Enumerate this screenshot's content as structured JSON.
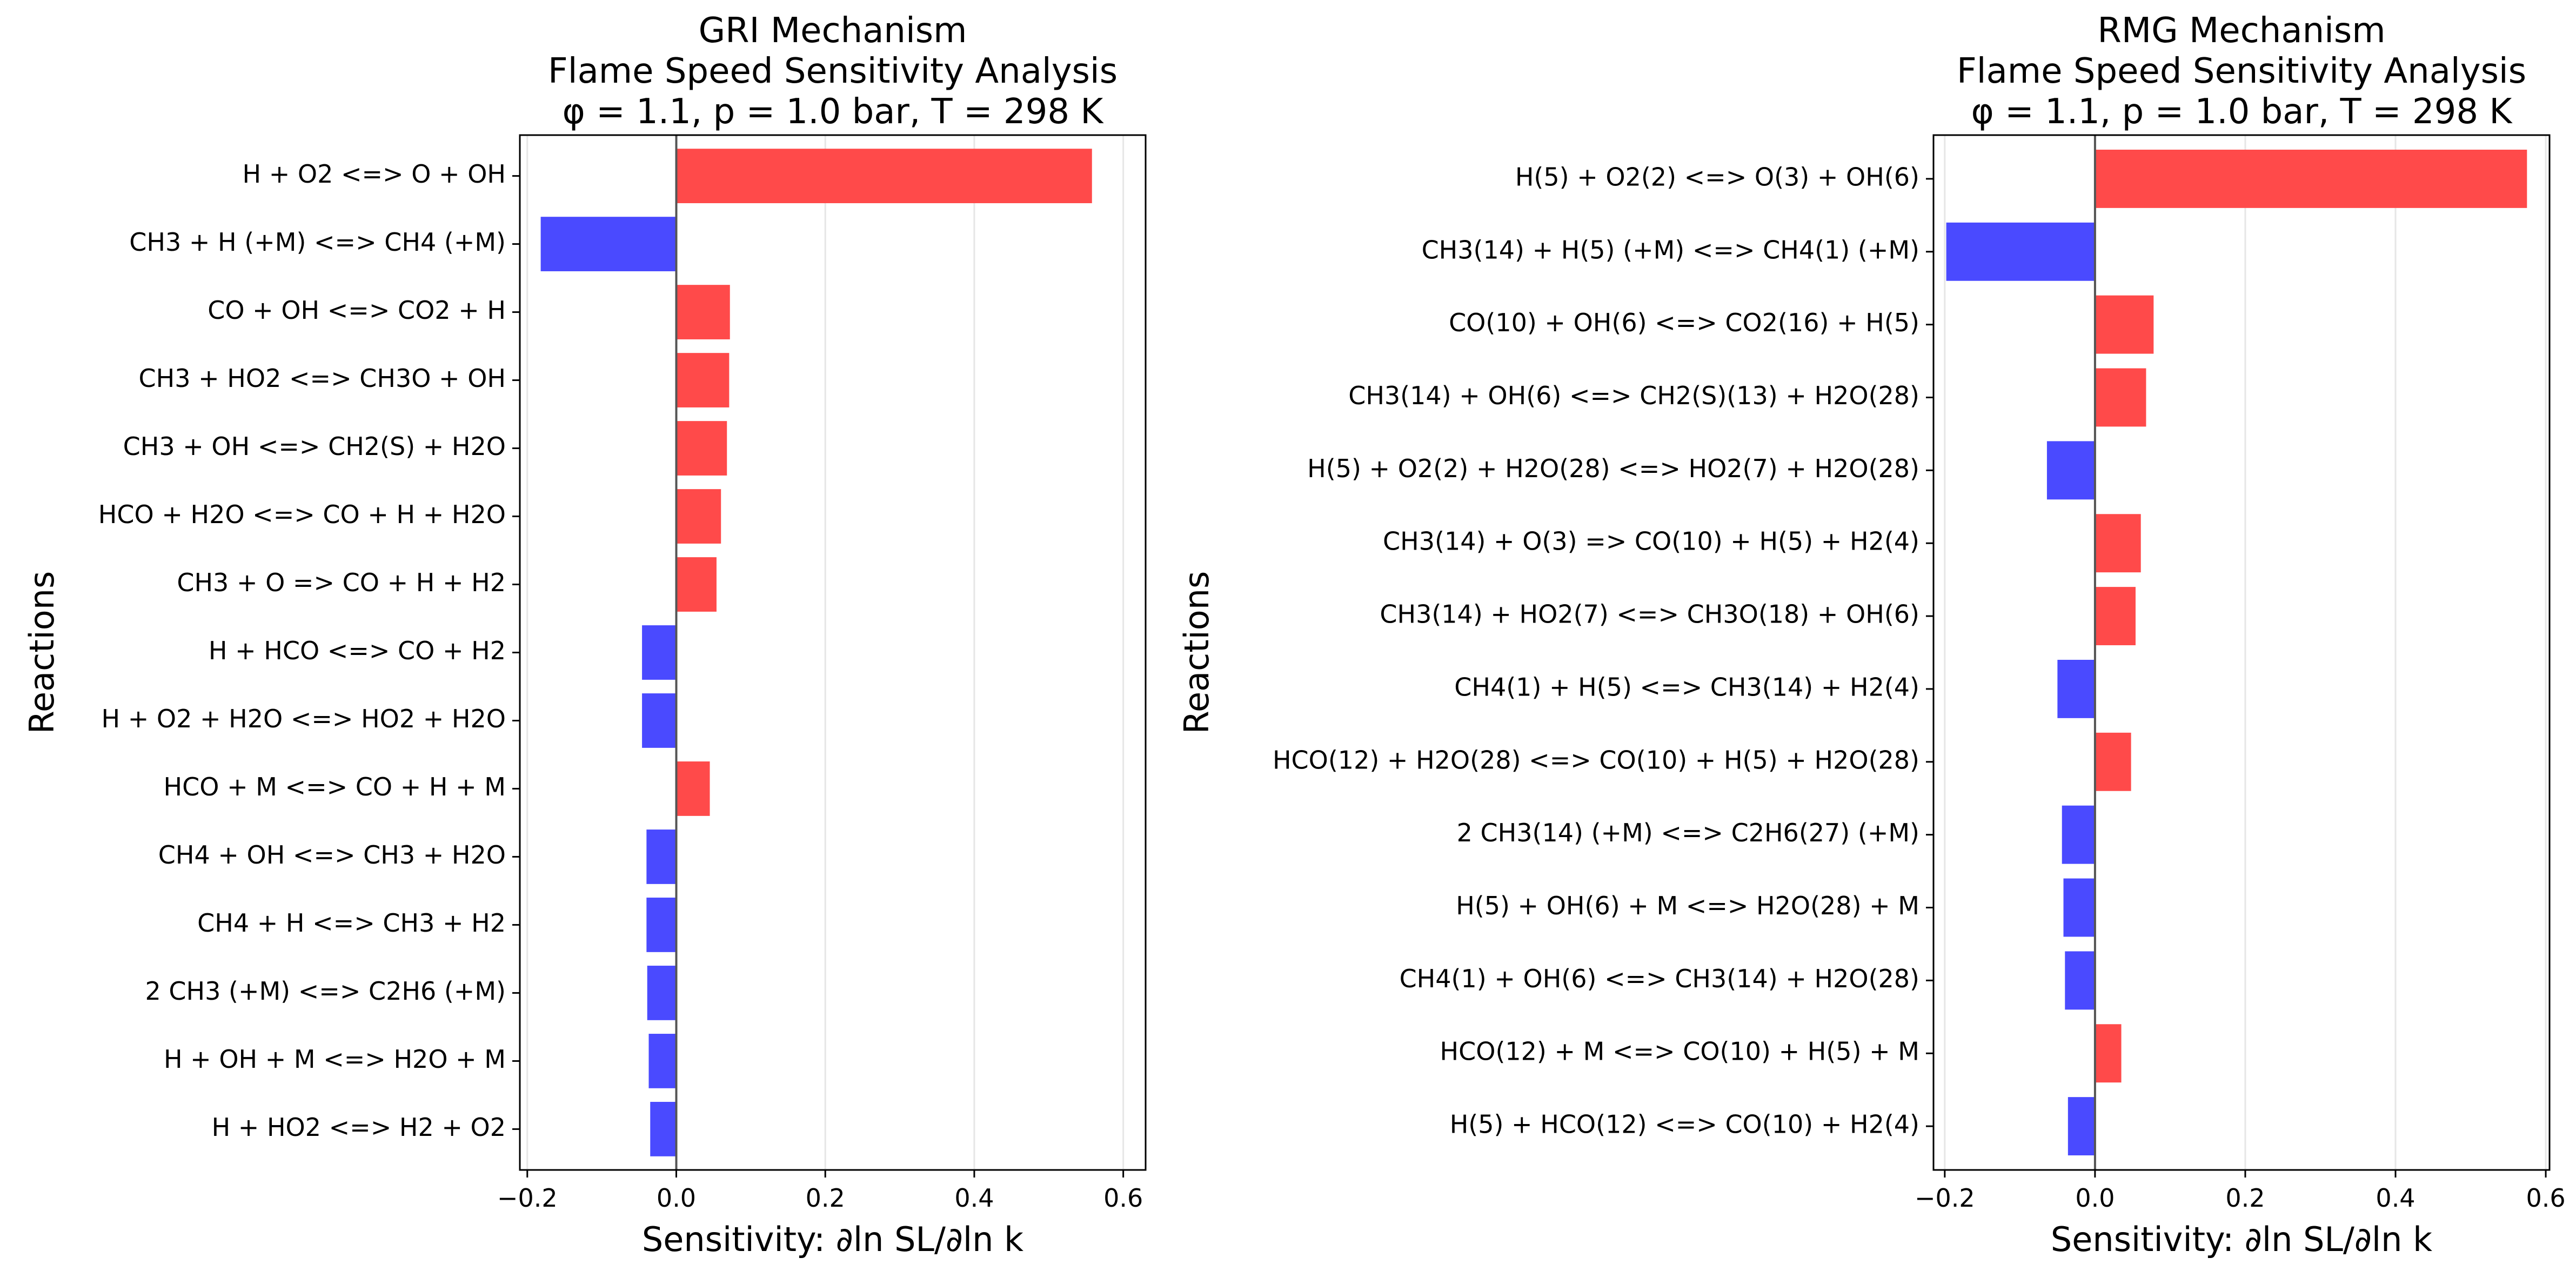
{
  "chart_data": [
    {
      "type": "bar",
      "orientation": "horizontal",
      "title_lines": [
        "GRI Mechanism",
        "Flame Speed Sensitivity Analysis",
        "φ = 1.1, p = 1.0 bar, T = 298 K"
      ],
      "xlabel": "Sensitivity: ∂ln SL/∂ln k",
      "ylabel": "Reactions",
      "xlim": [
        -0.21,
        0.63
      ],
      "xticks": [
        -0.2,
        0.0,
        0.2,
        0.4,
        0.6
      ],
      "xtick_labels": [
        "−0.2",
        "0.0",
        "0.2",
        "0.4",
        "0.6"
      ],
      "grid": "vertical",
      "positive_color": "#ff4a4a",
      "negative_color": "#4a4aff",
      "categories": [
        "H + O2 <=> O + OH",
        "CH3 + H (+M) <=> CH4 (+M)",
        "CO + OH <=> CO2 + H",
        "CH3 + HO2 <=> CH3O + OH",
        "CH3 + OH <=> CH2(S) + H2O",
        "HCO + H2O <=> CO + H + H2O",
        "CH3 + O => CO + H + H2",
        "H + HCO <=> CO + H2",
        "H + O2 + H2O <=> HO2 + H2O",
        "HCO + M <=> CO + H + M",
        "CH4 + OH <=> CH3 + H2O",
        "CH4 + H <=> CH3 + H2",
        "2 CH3 (+M) <=> C2H6 (+M)",
        "H + OH + M <=> H2O + M",
        "H + HO2 <=> H2 + O2"
      ],
      "values": [
        0.558,
        -0.182,
        0.072,
        0.071,
        0.068,
        0.06,
        0.054,
        -0.046,
        -0.046,
        0.045,
        -0.04,
        -0.04,
        -0.039,
        -0.037,
        -0.035
      ]
    },
    {
      "type": "bar",
      "orientation": "horizontal",
      "title_lines": [
        "RMG Mechanism",
        "Flame Speed Sensitivity Analysis",
        "φ = 1.1, p = 1.0 bar, T = 298 K"
      ],
      "xlabel": "Sensitivity: ∂ln SL/∂ln k",
      "ylabel": "Reactions",
      "xlim": [
        -0.215,
        0.605
      ],
      "xticks": [
        -0.2,
        0.0,
        0.2,
        0.4,
        0.6
      ],
      "xtick_labels": [
        "−0.2",
        "0.0",
        "0.2",
        "0.4",
        "0.6"
      ],
      "grid": "vertical",
      "positive_color": "#ff4a4a",
      "negative_color": "#4a4aff",
      "categories": [
        "H(5) + O2(2) <=> O(3) + OH(6)",
        "CH3(14) + H(5) (+M) <=> CH4(1) (+M)",
        "CO(10) + OH(6) <=> CO2(16) + H(5)",
        "CH3(14) + OH(6) <=> CH2(S)(13) + H2O(28)",
        "H(5) + O2(2) + H2O(28) <=> HO2(7) + H2O(28)",
        "CH3(14) + O(3) => CO(10) + H(5) + H2(4)",
        "CH3(14) + HO2(7) <=> CH3O(18) + OH(6)",
        "CH4(1) + H(5) <=> CH3(14) + H2(4)",
        "HCO(12) + H2O(28) <=> CO(10) + H(5) + H2O(28)",
        "2 CH3(14) (+M) <=> C2H6(27) (+M)",
        "H(5) + OH(6) + M <=> H2O(28) + M",
        "CH4(1) + OH(6) <=> CH3(14) + H2O(28)",
        "HCO(12) + M <=> CO(10) + H(5) + M",
        "H(5) + HCO(12) <=> CO(10) + H2(4)"
      ],
      "values": [
        0.575,
        -0.198,
        0.078,
        0.068,
        -0.064,
        0.061,
        0.054,
        -0.05,
        0.048,
        -0.044,
        -0.042,
        -0.04,
        0.035,
        -0.036
      ]
    }
  ]
}
